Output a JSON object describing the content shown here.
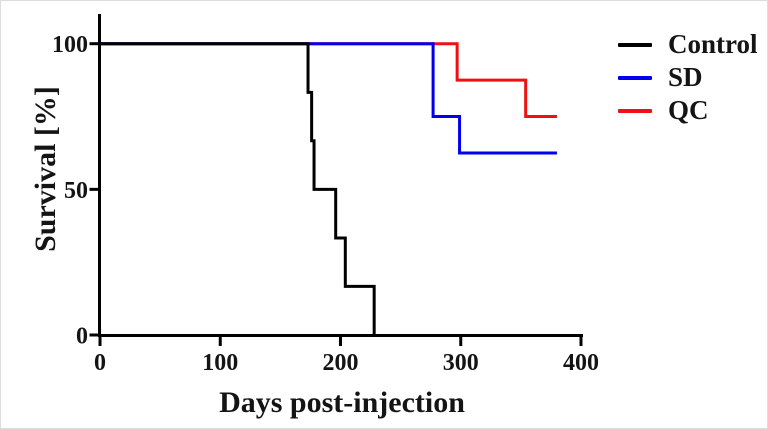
{
  "figure": {
    "background": "#ffffff",
    "axis_color": "#000000"
  },
  "chart_data": {
    "type": "line",
    "subtype": "kaplan-meier-survival-steps",
    "title": "",
    "xlabel": "Days post-injection",
    "ylabel": "Survival [%]",
    "xlim": [
      0,
      400
    ],
    "ylim": [
      0,
      100
    ],
    "xticks": [
      0,
      100,
      200,
      300,
      400
    ],
    "yticks": [
      0,
      50,
      100
    ],
    "grid": false,
    "legend_position": "right",
    "series": [
      {
        "name": "Control",
        "color": "#000000",
        "start": [
          0,
          100
        ],
        "steps": [
          [
            173,
            83.3
          ],
          [
            176,
            66.7
          ],
          [
            178,
            50
          ],
          [
            196,
            33.3
          ],
          [
            204,
            16.7
          ],
          [
            228,
            0
          ]
        ],
        "end_day": 228
      },
      {
        "name": "SD",
        "color": "#0000EE",
        "start": [
          0,
          100
        ],
        "steps": [
          [
            277,
            75
          ],
          [
            299,
            62.5
          ]
        ],
        "end_day": 380
      },
      {
        "name": "QC",
        "color": "#EE1111",
        "start": [
          0,
          100
        ],
        "steps": [
          [
            297,
            87.5
          ],
          [
            354,
            75
          ]
        ],
        "end_day": 380
      }
    ]
  }
}
